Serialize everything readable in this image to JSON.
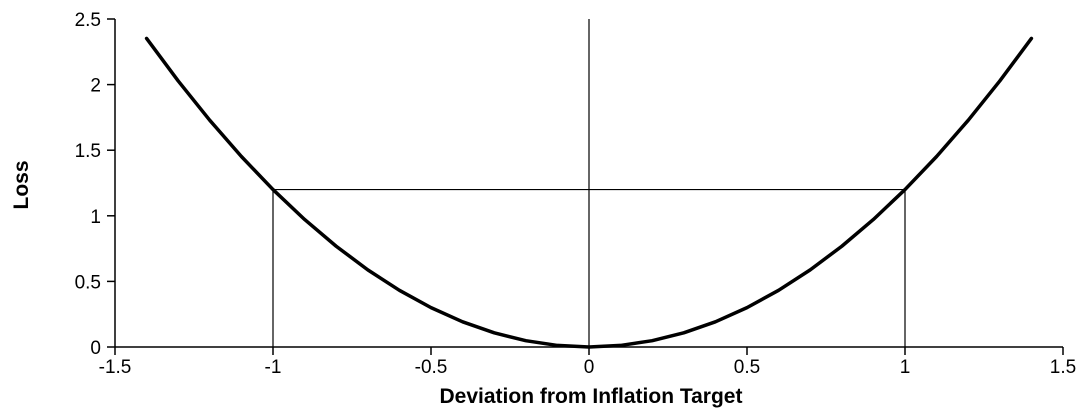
{
  "chart_data": {
    "type": "line",
    "xlabel": "Deviation from Inflation Target",
    "ylabel": "Loss",
    "x": [
      -1.4,
      -1.3,
      -1.2,
      -1.1,
      -1,
      -0.9,
      -0.8,
      -0.7,
      -0.6,
      -0.5,
      -0.4,
      -0.3,
      -0.2,
      -0.1,
      0,
      0.1,
      0.2,
      0.3,
      0.4,
      0.5,
      0.6,
      0.7,
      0.8,
      0.9,
      1,
      1.1,
      1.2,
      1.3,
      1.4
    ],
    "series": [
      {
        "color": "#000000",
        "values": [
          2.352,
          2.028,
          1.728,
          1.452,
          1.2,
          0.972,
          0.768,
          0.588,
          0.432,
          0.3,
          0.192,
          0.108,
          0.048,
          0.012,
          0,
          0.012,
          0.048,
          0.108,
          0.192,
          0.3,
          0.432,
          0.588,
          0.768,
          0.972,
          1.2,
          1.452,
          1.728,
          2.028,
          2.352
        ]
      }
    ],
    "reference_lines": [
      {
        "x": [
          0,
          0
        ],
        "y": [
          0,
          2.5
        ]
      },
      {
        "x": [
          -1,
          -1
        ],
        "y": [
          0,
          1.2
        ]
      },
      {
        "x": [
          -1,
          1
        ],
        "y": [
          1.2,
          1.2
        ]
      },
      {
        "x": [
          1,
          1
        ],
        "y": [
          0,
          1.2
        ]
      }
    ],
    "xlim": [
      -1.5,
      1.5
    ],
    "ylim": [
      0,
      2.5
    ],
    "xticks": [
      -1.5,
      -1,
      -0.5,
      0,
      0.5,
      1,
      1.5
    ],
    "yticks": [
      0,
      0.5,
      1,
      1.5,
      2,
      2.5
    ],
    "grid": false
  }
}
